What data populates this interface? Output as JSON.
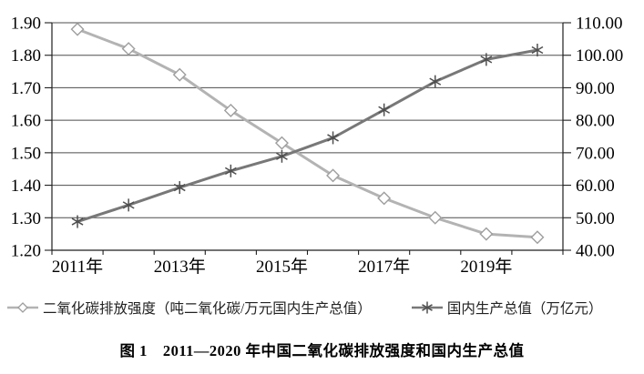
{
  "figure": {
    "caption": "图 1　2011—2020 年中国二氧化碳排放强度和国内生产总值"
  },
  "chart_data": {
    "type": "line",
    "title": "",
    "categories": [
      "2011",
      "2012",
      "2013",
      "2014",
      "2015",
      "2016",
      "2017",
      "2018",
      "2019",
      "2020"
    ],
    "x_tick_labels": [
      "2011年",
      "2013年",
      "2015年",
      "2017年",
      "2019年"
    ],
    "x_tick_label_positions": [
      0,
      2,
      4,
      6,
      8
    ],
    "series": [
      {
        "name": "二氧化碳排放强度（吨二氧化碳/万元国内生产总值）",
        "axis": "left",
        "marker": "diamond",
        "line_color": "#b3b3b3",
        "marker_stroke": "#9e9e9e",
        "marker_fill": "#ffffff",
        "values": [
          1.88,
          1.82,
          1.74,
          1.63,
          1.53,
          1.43,
          1.36,
          1.3,
          1.25,
          1.24
        ]
      },
      {
        "name": "国内生产总值（万亿元）",
        "axis": "right",
        "marker": "star",
        "line_color": "#787878",
        "marker_stroke": "#4f4f4f",
        "marker_fill": "none",
        "values": [
          48.8,
          53.9,
          59.3,
          64.4,
          68.9,
          74.6,
          83.2,
          91.9,
          98.7,
          101.6
        ]
      }
    ],
    "left_axis": {
      "min": 1.2,
      "max": 1.9,
      "step": 0.1,
      "tick_labels": [
        "1.90",
        "1.80",
        "1.70",
        "1.60",
        "1.50",
        "1.40",
        "1.30",
        "1.20"
      ]
    },
    "right_axis": {
      "min": 40,
      "max": 110,
      "step": 10,
      "tick_labels": [
        "110.00",
        "100.00",
        "90.00",
        "80.00",
        "70.00",
        "60.00",
        "50.00",
        "40.00"
      ]
    },
    "grid": true,
    "legend_position": "bottom",
    "colors": {
      "grid": "#4d4d4d",
      "axis": "#1f1f1f",
      "text": "#000000",
      "background": "#ffffff"
    }
  }
}
